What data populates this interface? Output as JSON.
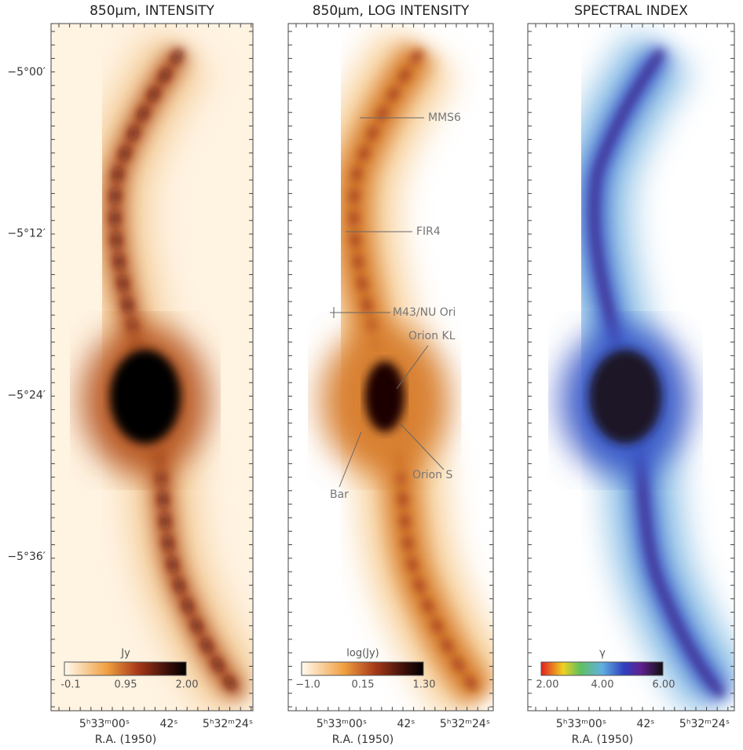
{
  "panels": [
    {
      "title": "850μm, INTENSITY",
      "dec_labels": [
        "−5°00′",
        "−5°12′",
        "−5°24′",
        "−5°36′"
      ],
      "colorbar": {
        "label": "Jy",
        "ticks": [
          "-0.1",
          "0.95",
          "2.00"
        ]
      },
      "ra_labels": [
        "5ʰ33ᵐ00ˢ",
        "42ˢ",
        "5ʰ32ᵐ24ˢ"
      ],
      "xlabel": "R.A. (1950)"
    },
    {
      "title": "850μm, LOG INTENSITY",
      "colorbar": {
        "label": "log(Jy)",
        "ticks": [
          "−1.0",
          "0.15",
          "1.30"
        ]
      },
      "annotations": [
        "MMS6",
        "FIR4",
        "M43/NU Ori",
        "Orion KL",
        "Orion S",
        "Bar"
      ],
      "ra_labels": [
        "5ʰ33ᵐ00ˢ",
        "42ˢ",
        "5ʰ32ᵐ24ˢ"
      ],
      "xlabel": "R.A. (1950)"
    },
    {
      "title": "SPECTRAL INDEX",
      "colorbar": {
        "label": "γ",
        "ticks": [
          "2.00",
          "4.00",
          "6.00"
        ]
      },
      "ra_labels": [
        "5ʰ33ᵐ00ˢ",
        "42ˢ",
        "5ʰ32ᵐ24ˢ"
      ],
      "xlabel": "R.A. (1950)"
    }
  ]
}
